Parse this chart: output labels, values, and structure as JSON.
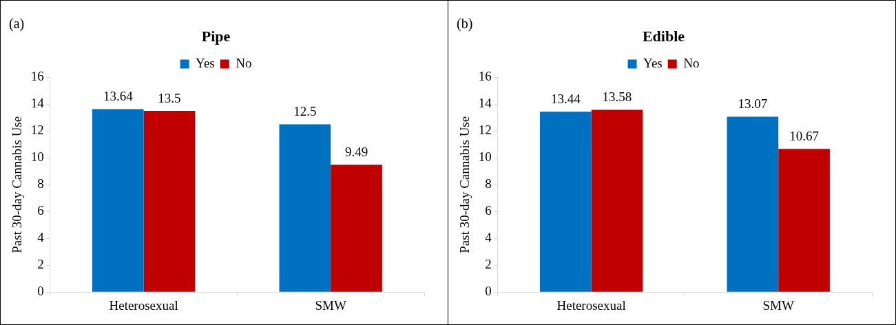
{
  "chart_data": [
    {
      "type": "bar",
      "title": "Pipe",
      "ylabel": "Past 30-day Cannabis Use",
      "annotations": [
        "(a)"
      ],
      "categories": [
        "Heterosexual",
        "SMW"
      ],
      "series": [
        {
          "name": "Yes",
          "color": "#0070c0",
          "values": [
            13.64,
            12.5
          ]
        },
        {
          "name": "No",
          "color": "#c00000",
          "values": [
            13.5,
            9.49
          ]
        }
      ],
      "ylim": [
        0,
        16
      ],
      "yticks": [
        0,
        2,
        4,
        6,
        8,
        10,
        12,
        14,
        16
      ],
      "grid": false,
      "legend": "top",
      "data_labels": true
    },
    {
      "type": "bar",
      "title": "Edible",
      "ylabel": "Past 30-day Cannabis Use",
      "annotations": [
        "(b)"
      ],
      "categories": [
        "Heterosexual",
        "SMW"
      ],
      "series": [
        {
          "name": "Yes",
          "color": "#0070c0",
          "values": [
            13.44,
            13.07
          ]
        },
        {
          "name": "No",
          "color": "#c00000",
          "values": [
            13.58,
            10.67
          ]
        }
      ],
      "ylim": [
        0,
        16
      ],
      "yticks": [
        0,
        2,
        4,
        6,
        8,
        10,
        12,
        14,
        16
      ],
      "grid": false,
      "legend": "top",
      "data_labels": true
    }
  ]
}
